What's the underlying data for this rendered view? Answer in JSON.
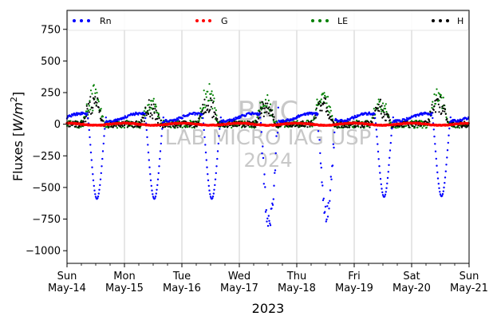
{
  "chart_data": {
    "type": "scatter",
    "xlabel": "2023",
    "ylabel_main": "Fluxes [",
    "ylabel_unit_italic": "W/m",
    "ylabel_exp": "2",
    "ylabel_close": "]",
    "ylim": [
      -1100,
      900
    ],
    "yticks": [
      "750",
      "500",
      "250",
      "0",
      "−250",
      "−500",
      "−750",
      "−1000"
    ],
    "ytick_values": [
      750,
      500,
      250,
      0,
      -250,
      -500,
      -750,
      -1000
    ],
    "xlim_days": [
      0,
      7
    ],
    "xticks": [
      {
        "day": "Sun",
        "date": "May-14"
      },
      {
        "day": "Mon",
        "date": "May-15"
      },
      {
        "day": "Tue",
        "date": "May-16"
      },
      {
        "day": "Wed",
        "date": "May-17"
      },
      {
        "day": "Thu",
        "date": "May-18"
      },
      {
        "day": "Fri",
        "date": "May-19"
      },
      {
        "day": "Sat",
        "date": "May-20"
      },
      {
        "day": "Sun",
        "date": "May-21"
      }
    ],
    "grid": "vertical",
    "legend_placement": "top",
    "series": [
      {
        "name": "Rn",
        "color": "#0000ff"
      },
      {
        "name": "G",
        "color": "#ff0000"
      },
      {
        "name": "LE",
        "color": "#008000"
      },
      {
        "name": "H",
        "color": "#000000"
      }
    ],
    "rn_peaks": [
      -590,
      -590,
      -590,
      -800,
      -720,
      -575,
      -570
    ],
    "watermark": [
      "BMC",
      "LAB MICRO IAG USP",
      "2024"
    ]
  }
}
